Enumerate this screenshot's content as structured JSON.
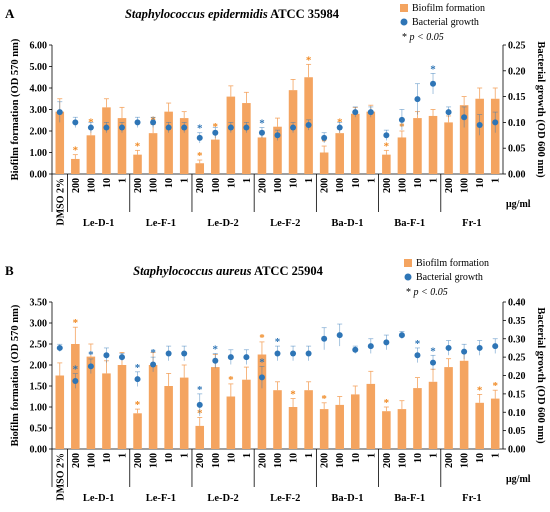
{
  "chart_data": [
    {
      "type": "bar",
      "panel_label": "A",
      "title": "Staphylococcus epidermidis ATCC 35984",
      "title_italic_part": "Staphylococcus epidermidis",
      "title_rest_part": "ATCC 35984",
      "ylabel": "Biofilm formation (OD 570 nm)",
      "y2label": "Bacterial growth (OD 600 nm)",
      "ylim": [
        0,
        6
      ],
      "y2lim": [
        0,
        0.25
      ],
      "yticks": [
        "0.00",
        "1.00",
        "2.00",
        "3.00",
        "4.00",
        "5.00",
        "6.00"
      ],
      "y2ticks": [
        "0.00",
        "0.05",
        "0.10",
        "0.15",
        "0.20",
        "0.25"
      ],
      "categories": [
        "DMSO 2%",
        "200",
        "100",
        "10",
        "1",
        "200",
        "100",
        "10",
        "1",
        "200",
        "100",
        "10",
        "1",
        "200",
        "100",
        "10",
        "1",
        "200",
        "100",
        "10",
        "1",
        "200",
        "100",
        "10",
        "1",
        "200",
        "100",
        "10",
        "1"
      ],
      "groups": [
        "Le-D-1",
        "Le-F-1",
        "Le-D-2",
        "Le-F-2",
        "Ba-D-1",
        "Ba-F-1",
        "Fr-1"
      ],
      "unit_label": "μg/ml",
      "legend": {
        "bar": "Biofilm formation",
        "dot": "Bacterial growth",
        "sig": "p < 0.05",
        "sig_star": "*",
        "placement": "top-right"
      },
      "series": [
        {
          "name": "Biofilm formation",
          "kind": "bar",
          "axis": "left",
          "values": [
            2.9,
            0.7,
            1.8,
            3.1,
            2.6,
            0.9,
            1.9,
            2.9,
            2.6,
            0.5,
            1.6,
            3.6,
            3.3,
            1.7,
            2.2,
            3.9,
            4.5,
            1.0,
            1.9,
            2.8,
            2.9,
            0.9,
            1.7,
            2.6,
            2.7,
            2.4,
            3.2,
            3.5,
            3.5
          ],
          "errors": [
            0.6,
            0.2,
            0.4,
            0.4,
            0.5,
            0.2,
            0.4,
            0.4,
            0.3,
            0.15,
            0.4,
            0.5,
            0.5,
            0.3,
            0.4,
            0.5,
            0.6,
            0.3,
            0.3,
            0.3,
            0.3,
            0.2,
            0.3,
            0.3,
            0.3,
            0.3,
            0.4,
            0.5,
            0.5
          ],
          "significant": [
            false,
            true,
            true,
            false,
            false,
            true,
            true,
            false,
            false,
            true,
            true,
            false,
            false,
            false,
            false,
            false,
            true,
            true,
            true,
            false,
            false,
            true,
            true,
            false,
            false,
            false,
            false,
            false,
            false
          ]
        },
        {
          "name": "Bacterial growth",
          "kind": "dot",
          "axis": "right",
          "values": [
            0.12,
            0.1,
            0.09,
            0.09,
            0.09,
            0.1,
            0.1,
            0.09,
            0.09,
            0.07,
            0.08,
            0.09,
            0.09,
            0.08,
            0.075,
            0.09,
            0.095,
            0.07,
            0.09,
            0.12,
            0.12,
            0.075,
            0.105,
            0.145,
            0.175,
            0.12,
            0.11,
            0.095,
            0.1
          ],
          "errors": [
            0.02,
            0.01,
            0.01,
            0.01,
            0.01,
            0.01,
            0.01,
            0.01,
            0.01,
            0.01,
            0.01,
            0.01,
            0.01,
            0.01,
            0.01,
            0.01,
            0.01,
            0.01,
            0.01,
            0.01,
            0.01,
            0.01,
            0.02,
            0.03,
            0.02,
            0.01,
            0.02,
            0.02,
            0.02
          ],
          "significant": [
            false,
            false,
            false,
            false,
            false,
            false,
            false,
            false,
            false,
            true,
            false,
            false,
            false,
            true,
            false,
            false,
            false,
            false,
            false,
            false,
            false,
            false,
            false,
            false,
            true,
            false,
            false,
            false,
            false
          ]
        }
      ]
    },
    {
      "type": "bar",
      "panel_label": "B",
      "title": "Staphylococcus aureus ATCC 25904",
      "title_italic_part": "Staphylococcus aureus",
      "title_rest_part": "ATCC 25904",
      "ylabel": "Biofilm formation (OD 570 nm)",
      "y2label": "Bacterial growth (OD 600 nm)",
      "ylim": [
        0,
        3.5
      ],
      "y2lim": [
        0,
        0.4
      ],
      "yticks": [
        "0.00",
        "0.50",
        "1.00",
        "1.50",
        "2.00",
        "2.50",
        "3.00",
        "3.50"
      ],
      "y2ticks": [
        "0.00",
        "0.05",
        "0.10",
        "0.15",
        "0.20",
        "0.25",
        "0.30",
        "0.35",
        "0.40"
      ],
      "categories": [
        "DMSO 2%",
        "200",
        "100",
        "10",
        "1",
        "200",
        "100",
        "10",
        "1",
        "200",
        "100",
        "10",
        "1",
        "200",
        "100",
        "10",
        "1",
        "200",
        "100",
        "10",
        "1",
        "200",
        "100",
        "10",
        "1",
        "200",
        "100",
        "10",
        "1"
      ],
      "groups": [
        "Le-D-1",
        "Le-F-1",
        "Le-D-2",
        "Le-F-2",
        "Ba-D-1",
        "Ba-F-1",
        "Fr-1"
      ],
      "unit_label": "μg/ml",
      "legend": {
        "bar": "Biofilm formation",
        "dot": "Bacterial growth",
        "sig": "p < 0.05",
        "sig_star": "*",
        "placement": "top-right"
      },
      "series": [
        {
          "name": "Biofilm formation",
          "kind": "bar",
          "axis": "left",
          "values": [
            1.75,
            2.5,
            2.2,
            1.8,
            2.0,
            0.85,
            2.0,
            1.5,
            1.7,
            0.55,
            1.95,
            1.25,
            1.65,
            2.25,
            1.4,
            1.0,
            1.4,
            0.95,
            1.05,
            1.3,
            1.55,
            0.9,
            0.95,
            1.45,
            1.6,
            1.95,
            2.1,
            1.1,
            1.2
          ],
          "errors": [
            0.3,
            0.4,
            0.3,
            0.3,
            0.3,
            0.1,
            0.3,
            0.3,
            0.3,
            0.2,
            0.3,
            0.3,
            0.3,
            0.3,
            0.2,
            0.2,
            0.2,
            0.15,
            0.2,
            0.2,
            0.3,
            0.1,
            0.2,
            0.25,
            0.3,
            0.2,
            0.2,
            0.2,
            0.2
          ],
          "significant": [
            false,
            true,
            false,
            false,
            false,
            true,
            false,
            false,
            false,
            true,
            false,
            true,
            false,
            true,
            false,
            true,
            false,
            true,
            false,
            false,
            false,
            true,
            false,
            false,
            false,
            false,
            false,
            true,
            true
          ]
        },
        {
          "name": "Bacterial growth",
          "kind": "dot",
          "axis": "right",
          "values": [
            0.275,
            0.185,
            0.225,
            0.255,
            0.25,
            0.19,
            0.23,
            0.26,
            0.26,
            0.12,
            0.24,
            0.25,
            0.25,
            0.195,
            0.26,
            0.26,
            0.26,
            0.3,
            0.31,
            0.27,
            0.28,
            0.29,
            0.31,
            0.255,
            0.235,
            0.275,
            0.265,
            0.275,
            0.28
          ],
          "errors": [
            0.01,
            0.02,
            0.02,
            0.02,
            0.01,
            0.02,
            0.02,
            0.02,
            0.02,
            0.03,
            0.02,
            0.02,
            0.02,
            0.03,
            0.02,
            0.02,
            0.02,
            0.03,
            0.03,
            0.01,
            0.02,
            0.02,
            0.01,
            0.02,
            0.02,
            0.02,
            0.02,
            0.02,
            0.02
          ],
          "significant": [
            false,
            true,
            true,
            false,
            false,
            true,
            true,
            false,
            false,
            true,
            true,
            false,
            false,
            true,
            true,
            false,
            false,
            false,
            false,
            false,
            false,
            false,
            false,
            true,
            true,
            false,
            false,
            false,
            false
          ]
        }
      ]
    }
  ]
}
